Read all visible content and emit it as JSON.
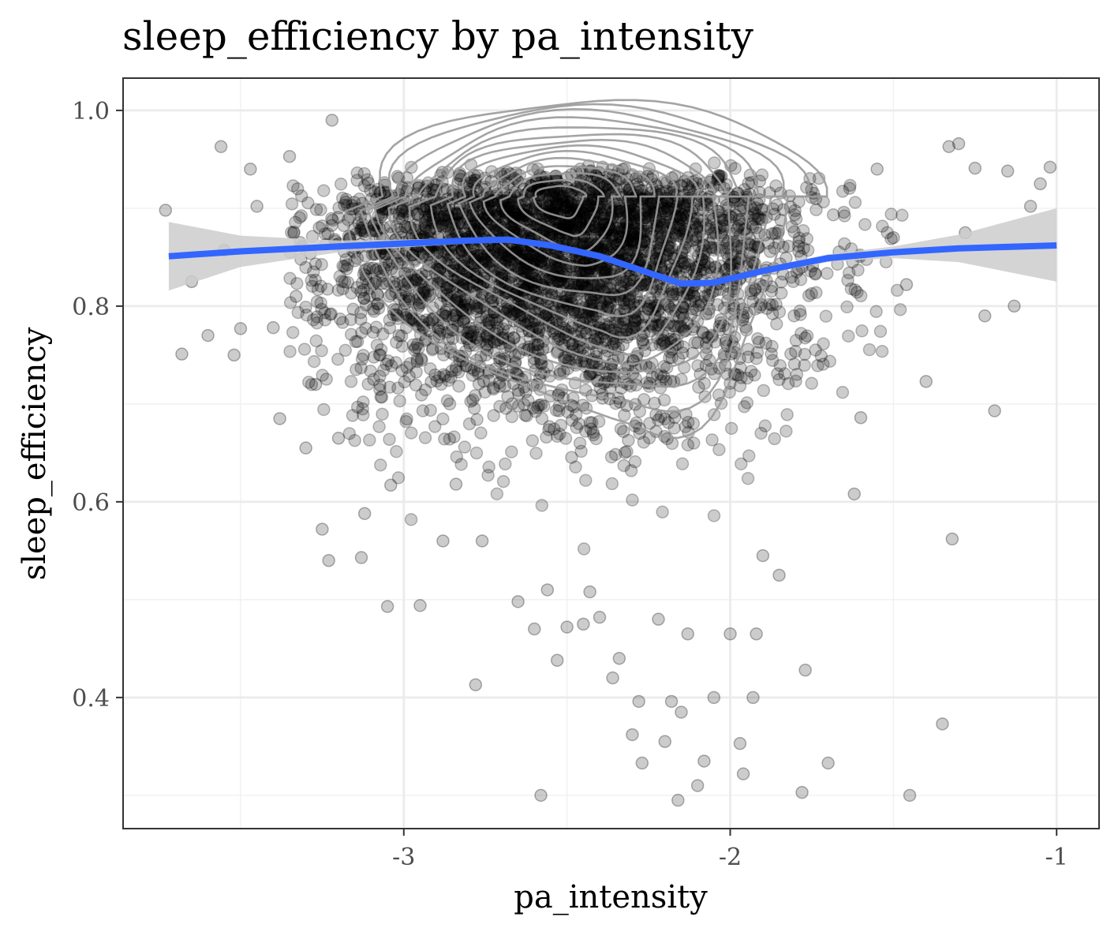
{
  "chart_data": {
    "type": "scatter",
    "title": "sleep_efficiency by pa_intensity",
    "xlabel": "pa_intensity",
    "ylabel": "sleep_efficiency",
    "xlim": [
      -3.86,
      -0.87
    ],
    "ylim": [
      0.266,
      1.033
    ],
    "x_ticks": [
      -3,
      -2,
      -1
    ],
    "x_tick_labels": [
      "-3",
      "-2",
      "-1"
    ],
    "x_minor_ticks": [
      -3.5,
      -2.5,
      -1.5
    ],
    "y_ticks": [
      0.4,
      0.6,
      0.8,
      1.0
    ],
    "y_tick_labels": [
      "0.4",
      "0.6",
      "0.8",
      "1.0"
    ],
    "y_minor_ticks": [
      0.3,
      0.5,
      0.7,
      0.9
    ],
    "grid": true,
    "point_color": "#000000",
    "point_opacity": 0.2,
    "contour_color": "#9a9a9a",
    "smooth_color": "#3366ff",
    "ribbon_color": "#cccccc",
    "density_center": [
      -2.53,
      0.912
    ],
    "density_spread": [
      0.42,
      0.1
    ],
    "smooth_line": {
      "x": [
        -3.72,
        -3.5,
        -3.2,
        -3.0,
        -2.8,
        -2.68,
        -2.55,
        -2.4,
        -2.25,
        -2.15,
        -2.05,
        -1.9,
        -1.7,
        -1.5,
        -1.3,
        -1.0
      ],
      "y": [
        0.851,
        0.856,
        0.861,
        0.864,
        0.867,
        0.868,
        0.862,
        0.851,
        0.834,
        0.823,
        0.824,
        0.836,
        0.849,
        0.855,
        0.859,
        0.862
      ]
    },
    "confidence_band": {
      "x": [
        -3.72,
        -3.5,
        -3.2,
        -3.0,
        -2.8,
        -2.68,
        -2.55,
        -2.4,
        -2.25,
        -2.15,
        -2.05,
        -1.9,
        -1.7,
        -1.5,
        -1.3,
        -1.0
      ],
      "lower": [
        0.816,
        0.84,
        0.855,
        0.86,
        0.864,
        0.865,
        0.859,
        0.848,
        0.831,
        0.82,
        0.821,
        0.833,
        0.845,
        0.849,
        0.845,
        0.825
      ],
      "upper": [
        0.886,
        0.872,
        0.867,
        0.868,
        0.87,
        0.871,
        0.865,
        0.854,
        0.837,
        0.826,
        0.827,
        0.839,
        0.853,
        0.861,
        0.873,
        0.9
      ]
    },
    "outlier_points": {
      "x": [
        -3.73,
        -3.68,
        -3.65,
        -3.6,
        -3.56,
        -3.55,
        -3.52,
        -3.5,
        -3.47,
        -3.45,
        -3.4,
        -3.38,
        -3.35,
        -3.33,
        -3.3,
        -3.27,
        -3.25,
        -3.23,
        -3.22,
        -3.2,
        -3.13,
        -3.12,
        -3.05,
        -3.04,
        -2.95,
        -2.88,
        -2.84,
        -2.78,
        -2.76,
        -2.65,
        -2.6,
        -2.58,
        -2.56,
        -2.53,
        -2.5,
        -2.45,
        -2.43,
        -2.4,
        -2.36,
        -2.34,
        -2.3,
        -2.28,
        -2.27,
        -2.22,
        -2.2,
        -2.18,
        -2.16,
        -2.15,
        -2.13,
        -2.1,
        -2.08,
        -2.05,
        -2.0,
        -1.97,
        -1.96,
        -1.93,
        -1.92,
        -1.9,
        -1.85,
        -1.78,
        -1.77,
        -1.7,
        -1.62,
        -1.6,
        -1.55,
        -1.5,
        -1.46,
        -1.45,
        -1.4,
        -1.35,
        -1.33,
        -1.32,
        -1.3,
        -1.28,
        -1.25,
        -1.22,
        -1.19,
        -1.15,
        -1.13,
        -1.08,
        -1.05,
        -1.02
      ],
      "y": [
        0.898,
        0.751,
        0.825,
        0.77,
        0.963,
        0.857,
        0.75,
        0.777,
        0.94,
        0.902,
        0.778,
        0.685,
        0.953,
        0.81,
        0.655,
        0.72,
        0.572,
        0.54,
        0.99,
        0.665,
        0.543,
        0.588,
        0.493,
        0.617,
        0.494,
        0.56,
        0.618,
        0.413,
        0.56,
        0.498,
        0.47,
        0.3,
        0.51,
        0.438,
        0.472,
        0.475,
        0.508,
        0.482,
        0.42,
        0.44,
        0.362,
        0.396,
        0.333,
        0.48,
        0.355,
        0.396,
        0.295,
        0.385,
        0.465,
        0.31,
        0.335,
        0.4,
        0.465,
        0.353,
        0.322,
        0.4,
        0.465,
        0.545,
        0.525,
        0.303,
        0.428,
        0.333,
        0.608,
        0.686,
        0.94,
        0.87,
        0.822,
        0.3,
        0.723,
        0.373,
        0.963,
        0.562,
        0.966,
        0.875,
        0.941,
        0.79,
        0.693,
        0.938,
        0.8,
        0.902,
        0.925,
        0.942
      ]
    }
  }
}
